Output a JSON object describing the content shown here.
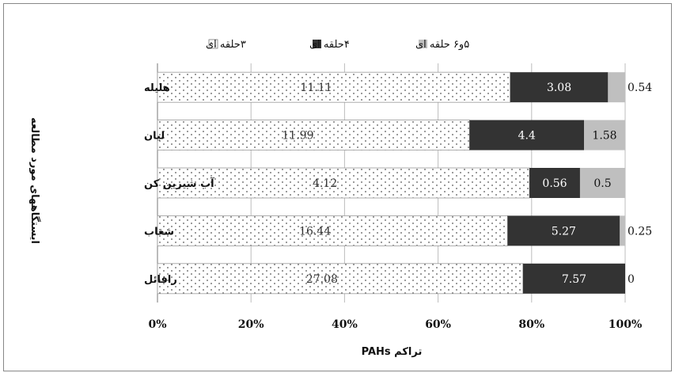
{
  "chart_data": {
    "type": "bar",
    "orientation": "horizontal",
    "stacked": "percent",
    "categories": [
      "هلیله",
      "لیان",
      "آب شیرین کن",
      "شغاب",
      "رافائل"
    ],
    "series": [
      {
        "name": "۳حلقه ای",
        "values": [
          11.11,
          11.99,
          4.12,
          16.44,
          27.08
        ],
        "color": "#ffffff",
        "pattern": "dots"
      },
      {
        "name": "۴حلقه  ای",
        "values": [
          3.08,
          4.4,
          0.56,
          5.27,
          7.57
        ],
        "color": "#333333"
      },
      {
        "name": "۵و۶ حلقه ای",
        "values": [
          0.54,
          1.58,
          0.5,
          0.25,
          0
        ],
        "color": "#bfbfbf"
      }
    ],
    "xticks": [
      "0%",
      "20%",
      "40%",
      "60%",
      "80%",
      "100%"
    ],
    "xlim": [
      0,
      100
    ],
    "xlabel": "تراکم PAHs",
    "ylabel": "ایستگاههای مورد مطالعه",
    "legend_position": "top",
    "grid": "vertical"
  }
}
